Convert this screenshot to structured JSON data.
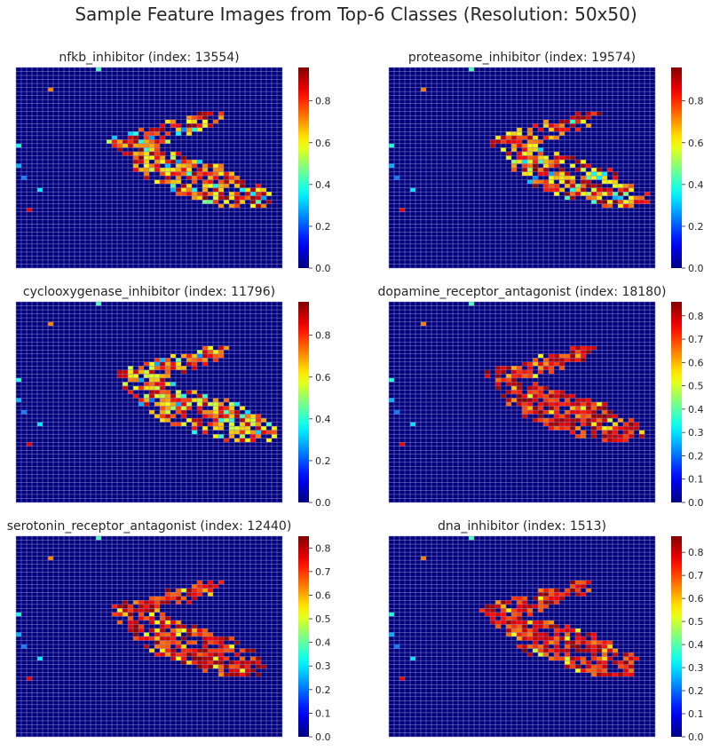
{
  "chart_data": {
    "type": "heatmap",
    "title": "Sample Feature Images from Top-6 Classes (Resolution: 50x50)",
    "resolution": [
      50,
      50
    ],
    "colormap": "jet",
    "colors": {
      "background_cell": "#00007f",
      "grid_line": "#8c8cc8",
      "text": "#262626"
    },
    "panels": [
      {
        "title": "nfkb_inhibitor (index: 13554)",
        "colorbar": {
          "min": 0.0,
          "max": 0.96,
          "ticks": [
            "0.0",
            "0.2",
            "0.4",
            "0.6",
            "0.8"
          ]
        },
        "value_range": [
          0.25,
          0.96
        ],
        "shift": [
          0,
          0
        ]
      },
      {
        "title": "proteasome_inhibitor (index: 19574)",
        "colorbar": {
          "min": 0.0,
          "max": 0.96,
          "ticks": [
            "0.0",
            "0.2",
            "0.4",
            "0.6",
            "0.8"
          ]
        },
        "value_range": [
          0.25,
          0.96
        ],
        "shift": [
          0,
          1
        ]
      },
      {
        "title": "cyclooxygenase_inhibitor (index: 11796)",
        "colorbar": {
          "min": 0.0,
          "max": 0.96,
          "ticks": [
            "0.0",
            "0.2",
            "0.4",
            "0.6",
            "0.8"
          ]
        },
        "value_range": [
          0.22,
          0.92
        ],
        "shift": [
          0,
          1
        ]
      },
      {
        "title": "dopamine_receptor_antagonist (index: 18180)",
        "colorbar": {
          "min": 0.0,
          "max": 0.86,
          "ticks": [
            "0.0",
            "0.1",
            "0.2",
            "0.3",
            "0.4",
            "0.5",
            "0.6",
            "0.7",
            "0.8"
          ]
        },
        "value_range": [
          0.5,
          0.86
        ],
        "shift": [
          0,
          0
        ]
      },
      {
        "title": "serotonin_receptor_antagonist (index: 12440)",
        "colorbar": {
          "min": 0.0,
          "max": 0.85,
          "ticks": [
            "0.0",
            "0.1",
            "0.2",
            "0.3",
            "0.4",
            "0.5",
            "0.6",
            "0.7",
            "0.8"
          ]
        },
        "value_range": [
          0.5,
          0.85
        ],
        "shift": [
          0,
          0
        ]
      },
      {
        "title": "dna_inhibitor (index: 1513)",
        "colorbar": {
          "min": 0.0,
          "max": 0.87,
          "ticks": [
            "0.0",
            "0.1",
            "0.2",
            "0.3",
            "0.4",
            "0.5",
            "0.6",
            "0.7",
            "0.8"
          ]
        },
        "value_range": [
          0.5,
          0.87
        ],
        "shift": [
          0,
          0
        ]
      }
    ]
  }
}
